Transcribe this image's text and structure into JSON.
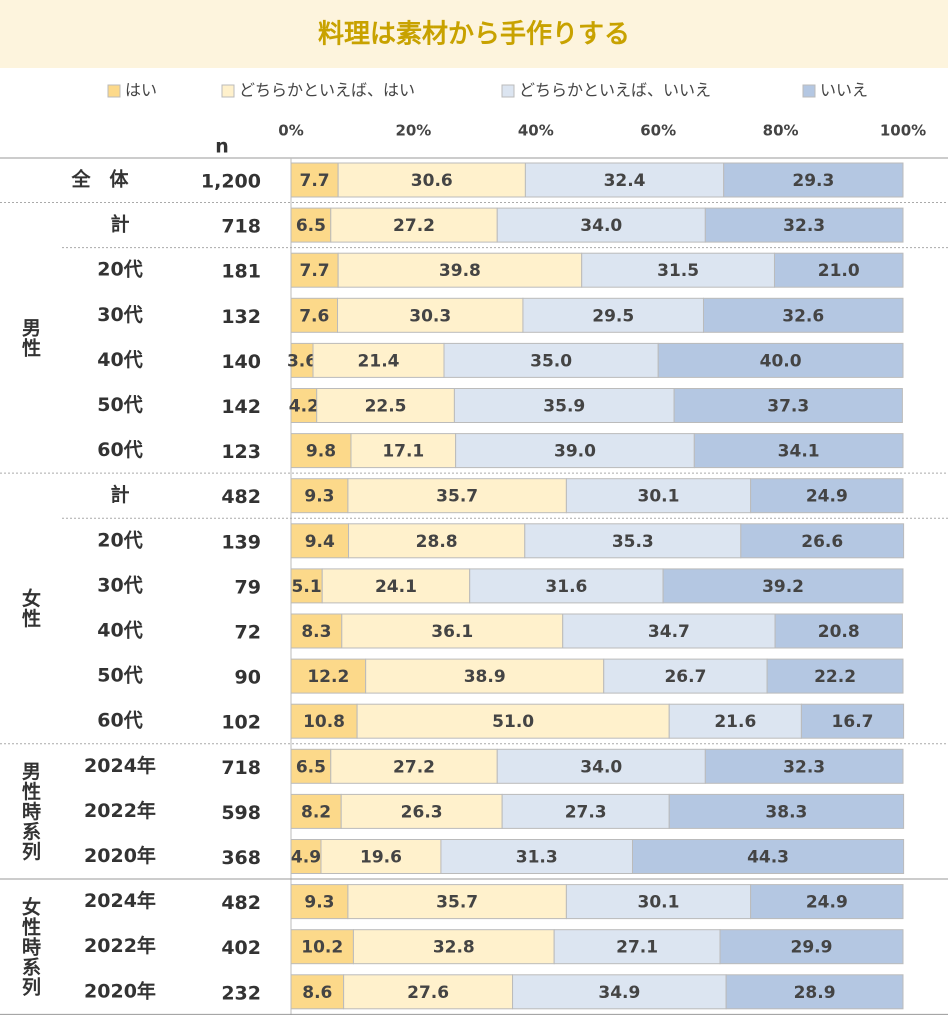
{
  "chart_data": {
    "type": "bar",
    "orientation": "horizontal",
    "stacked": true,
    "title": "料理は素材から手作りする",
    "n_label": "n",
    "xlim": [
      0,
      100
    ],
    "xticks": [
      {
        "value": 0,
        "label": "0%"
      },
      {
        "value": 20,
        "label": "20%"
      },
      {
        "value": 40,
        "label": "40%"
      },
      {
        "value": 60,
        "label": "60%"
      },
      {
        "value": 80,
        "label": "80%"
      },
      {
        "value": 100,
        "label": "100%"
      }
    ],
    "groups": [
      {
        "categories": [
          "全　体"
        ]
      },
      {
        "label": "男性",
        "categories": [
          "計",
          "20代",
          "30代",
          "40代",
          "50代",
          "60代"
        ]
      },
      {
        "label": "女性",
        "categories": [
          "計",
          "20代",
          "30代",
          "40代",
          "50代",
          "60代"
        ]
      },
      {
        "label": "男性時系列",
        "categories": [
          "2024年",
          "2022年",
          "2020年"
        ]
      },
      {
        "label": "女性時系列",
        "categories": [
          "2024年",
          "2022年",
          "2020年"
        ]
      }
    ],
    "n": [
      {
        "value": 1200,
        "label": "1,200"
      },
      718,
      181,
      132,
      140,
      142,
      123,
      482,
      139,
      79,
      72,
      90,
      102,
      718,
      598,
      368,
      482,
      402,
      232
    ],
    "series": [
      {
        "name": "はい",
        "color": "#fcd98a",
        "values": [
          7.7,
          6.5,
          7.7,
          7.6,
          3.6,
          4.2,
          9.8,
          9.3,
          9.4,
          5.1,
          8.3,
          12.2,
          10.8,
          6.5,
          8.2,
          4.9,
          9.3,
          10.2,
          8.6
        ],
        "value_labels": [
          "7.7",
          "6.5",
          "7.7",
          "7.6",
          "3.6",
          "4.2",
          "9.8",
          "9.3",
          "9.4",
          "5.1",
          "8.3",
          "12.2",
          "10.8",
          "6.5",
          "8.2",
          "4.9",
          "9.3",
          "10.2",
          "8.6"
        ]
      },
      {
        "name": "どちらかといえば、はい",
        "color": "#fff1cc",
        "values": [
          30.6,
          27.2,
          39.8,
          30.3,
          21.4,
          22.5,
          17.1,
          35.7,
          28.8,
          24.1,
          36.1,
          38.9,
          51.0,
          27.2,
          26.3,
          19.6,
          35.7,
          32.8,
          27.6
        ],
        "value_labels": [
          "30.6",
          "27.2",
          "39.8",
          "30.3",
          "21.4",
          "22.5",
          "17.1",
          "35.7",
          "28.8",
          "24.1",
          "36.1",
          "38.9",
          "51.0",
          "27.2",
          "26.3",
          "19.6",
          "35.7",
          "32.8",
          "27.6"
        ]
      },
      {
        "name": "どちらかといえば、いいえ",
        "color": "#dce5f1",
        "values": [
          32.4,
          34.0,
          31.5,
          29.5,
          35.0,
          35.9,
          39.0,
          30.1,
          35.3,
          31.6,
          34.7,
          26.7,
          21.6,
          34.0,
          27.3,
          31.3,
          30.1,
          27.1,
          34.9
        ],
        "value_labels": [
          "32.4",
          "34.0",
          "31.5",
          "29.5",
          "35.0",
          "35.9",
          "39.0",
          "30.1",
          "35.3",
          "31.6",
          "34.7",
          "26.7",
          "21.6",
          "34.0",
          "27.3",
          "31.3",
          "30.1",
          "27.1",
          "34.9"
        ]
      },
      {
        "name": "いいえ",
        "color": "#b4c7e2",
        "values": [
          29.3,
          32.3,
          21.0,
          32.6,
          40.0,
          37.3,
          34.1,
          24.9,
          26.6,
          39.2,
          20.8,
          22.2,
          16.7,
          32.3,
          38.3,
          44.3,
          24.9,
          29.9,
          28.9
        ],
        "value_labels": [
          "29.3",
          "32.3",
          "21.0",
          "32.6",
          "40.0",
          "37.3",
          "34.1",
          "24.9",
          "26.6",
          "39.2",
          "20.8",
          "22.2",
          "16.7",
          "32.3",
          "38.3",
          "44.3",
          "24.9",
          "29.9",
          "28.9"
        ]
      }
    ]
  }
}
